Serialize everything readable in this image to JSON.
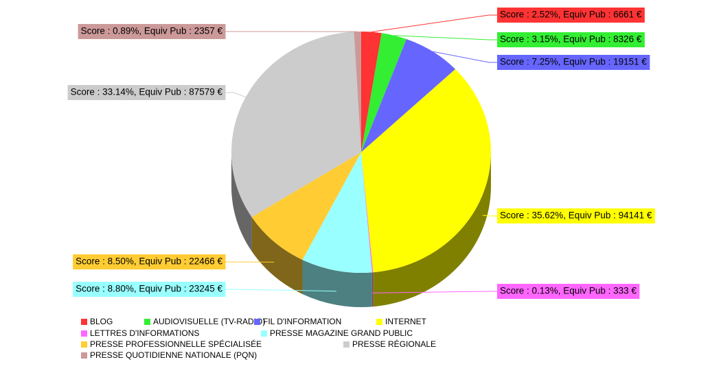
{
  "chart_data": {
    "type": "pie",
    "categories": [
      "BLOG",
      "AUDIOVISUELLE (TV-RADIO)",
      "FIL D'INFORMATION",
      "INTERNET",
      "LETTRES D'INFORMATIONS",
      "PRESSE MAGAZINE GRAND PUBLIC",
      "PRESSE PROFESSIONNELLE SPÉCIALISÉE",
      "PRESSE RÉGIONALE",
      "PRESSE QUOTIDIENNE NATIONALE (PQN)"
    ],
    "values": [
      2.52,
      3.15,
      7.25,
      35.62,
      0.13,
      8.8,
      8.5,
      33.14,
      0.89
    ],
    "value_labels": [
      "Score : 2.52%, Equiv Pub : 6661 €",
      "Score : 3.15%, Equiv Pub : 8326 €",
      "Score : 7.25%, Equiv Pub : 19151 €",
      "Score : 35.62%, Equiv Pub : 94141 €",
      "Score : 0.13%, Equiv Pub : 333 €",
      "Score : 8.80%, Equiv Pub : 23245 €",
      "Score : 8.50%, Equiv Pub : 22466 €",
      "Score : 33.14%, Equiv Pub : 87579 €",
      "Score : 0.89%, Equiv Pub : 2357 €"
    ],
    "colors": [
      "#ff3333",
      "#33ee33",
      "#6666ff",
      "#ffff00",
      "#ff66ff",
      "#99ffff",
      "#ffcc33",
      "#cccccc",
      "#cc9999"
    ],
    "legend": true
  }
}
